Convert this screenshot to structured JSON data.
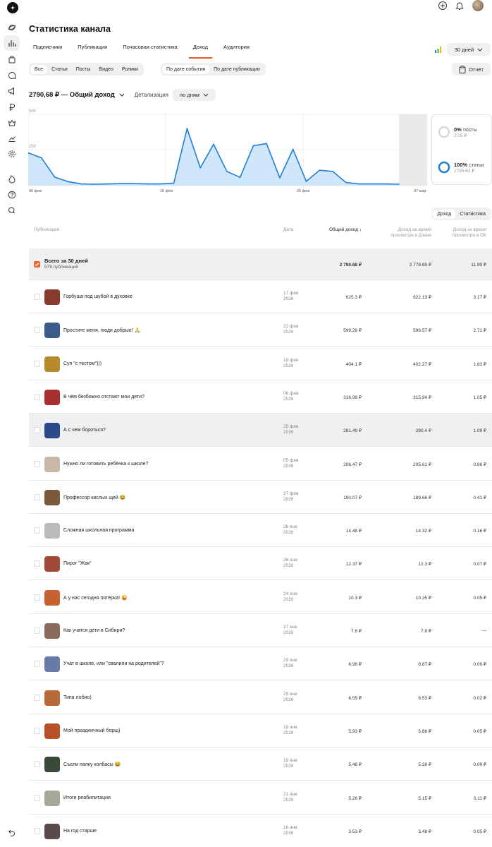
{
  "page": {
    "title": "Статистика канала"
  },
  "tabs": [
    "Подписчики",
    "Публикации",
    "Почасовая статистика",
    "Доход",
    "Аудитория"
  ],
  "period": "30 дней",
  "filters": {
    "type": [
      "Все",
      "Статьи",
      "Посты",
      "Видео",
      "Ролики"
    ],
    "date_mode": [
      "По дате события",
      "По дате публикации"
    ]
  },
  "report_label": "Отчёт",
  "total": {
    "text": "2790,68 ₽ — Общий доход",
    "detail_label": "Детализация",
    "detail_value": "по дням"
  },
  "chart_data": {
    "type": "area",
    "y_ticks": [
      "500",
      "250"
    ],
    "ylim": [
      0,
      500
    ],
    "x_tick_labels": [
      "06 фев",
      "16 фев",
      "26 фев",
      "07 мар"
    ],
    "values": [
      230,
      195,
      60,
      28,
      12,
      10,
      12,
      14,
      14,
      12,
      12,
      18,
      400,
      125,
      290,
      100,
      58,
      280,
      295,
      55,
      255,
      30,
      108,
      100,
      22,
      12,
      12,
      12,
      10
    ],
    "colors": {
      "line": "#1f7fd6",
      "fill": "#cfe6fb"
    }
  },
  "breakdown": [
    {
      "pct": "0%",
      "label": "посты",
      "amount": "2.05 ₽"
    },
    {
      "pct": "100%",
      "label": "статьи",
      "amount": "2788.63 ₽"
    }
  ],
  "view_toggle": [
    "Доход",
    "Статистика"
  ],
  "columns": {
    "publication": "Публикация",
    "date": "Дата",
    "total": "Общий доход ↓",
    "dzen_1": "Доход за время",
    "dzen_2": "просмотра в Дзене",
    "ok_1": "Доход за время",
    "ok_2": "просмотра в ОК"
  },
  "summary": {
    "title": "Всего за 30 дней",
    "subtitle": "579 публикаций",
    "total": "2 790.68 ₽",
    "dzen": "2 778.69 ₽",
    "ok": "11.99 ₽"
  },
  "rows": [
    {
      "name": "Горбуша под шубой в духовке",
      "date1": "17 фев",
      "date2": "2026",
      "total": "625.3 ₽",
      "dzen": "622.13 ₽",
      "ok": "3.17 ₽"
    },
    {
      "name": "Простите меня, люди добрые! 🙏",
      "date1": "22 фев",
      "date2": "2026",
      "total": "599.28 ₽",
      "dzen": "596.57 ₽",
      "ok": "2.71 ₽"
    },
    {
      "name": "Суп \"с тестом\")))",
      "date1": "19 фев",
      "date2": "2026",
      "total": "404.1 ₽",
      "dzen": "402.27 ₽",
      "ok": "1.83 ₽"
    },
    {
      "name": "В чём безбожно отстают мои дети?",
      "date1": "06 фев",
      "date2": "2026",
      "total": "316.99 ₽",
      "dzen": "315.94 ₽",
      "ok": "1.05 ₽"
    },
    {
      "name": "А с чем бороться?",
      "date1": "25 фев",
      "date2": "2026",
      "total": "281.49 ₽",
      "dzen": "280.4 ₽",
      "ok": "1.09 ₽"
    },
    {
      "name": "Нужно ли готовить ребёнка к школе?",
      "date1": "05 фев",
      "date2": "2026",
      "total": "206.47 ₽",
      "dzen": "205.61 ₽",
      "ok": "0.86 ₽"
    },
    {
      "name": "Профессор кислых щей 😂",
      "date1": "27 фев",
      "date2": "2026",
      "total": "190.07 ₽",
      "dzen": "189.66 ₽",
      "ok": "0.41 ₽"
    },
    {
      "name": "Сложная школьная программа",
      "date1": "28 янв",
      "date2": "2026",
      "total": "14.48 ₽",
      "dzen": "14.32 ₽",
      "ok": "0.16 ₽"
    },
    {
      "name": "Пирог \"Жак\"",
      "date1": "26 янв",
      "date2": "2026",
      "total": "12.37 ₽",
      "dzen": "12.3 ₽",
      "ok": "0.07 ₽"
    },
    {
      "name": "А у нас сегодня пятёрка! 😜",
      "date1": "24 янв",
      "date2": "2026",
      "total": "10.3 ₽",
      "dzen": "10.25 ₽",
      "ok": "0.05 ₽"
    },
    {
      "name": "Как учатся дети в Сибири?",
      "date1": "27 янв",
      "date2": "2026",
      "total": "7.8 ₽",
      "dzen": "7.8 ₽",
      "ok": "—"
    },
    {
      "name": "Учат в школе, или \"свалили на родителей\"?",
      "date1": "29 янв",
      "date2": "2026",
      "total": "6.96 ₽",
      "dzen": "6.87 ₽",
      "ok": "0.09 ₽"
    },
    {
      "name": "Типа лобио)",
      "date1": "25 янв",
      "date2": "2026",
      "total": "6.55 ₽",
      "dzen": "6.53 ₽",
      "ok": "0.02 ₽"
    },
    {
      "name": "Мой праздничный борщ)",
      "date1": "19 янв",
      "date2": "2026",
      "total": "5.93 ₽",
      "dzen": "5.88 ₽",
      "ok": "0.05 ₽"
    },
    {
      "name": "Съели палку колбасы 😂",
      "date1": "19 янв",
      "date2": "2026",
      "total": "5.48 ₽",
      "dzen": "5.39 ₽",
      "ok": "0.09 ₽"
    },
    {
      "name": "Итоги реабилитации",
      "date1": "21 янв",
      "date2": "2026",
      "total": "5.26 ₽",
      "dzen": "5.15 ₽",
      "ok": "0.11 ₽"
    },
    {
      "name": "На год старше",
      "date1": "16 янв",
      "date2": "2026",
      "total": "3.53 ₽",
      "dzen": "3.48 ₽",
      "ok": "0.05 ₽"
    }
  ]
}
